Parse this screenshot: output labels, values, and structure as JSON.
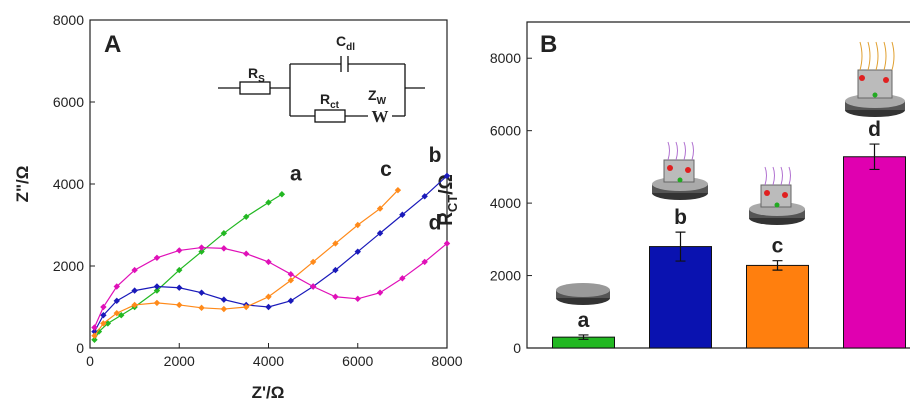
{
  "chart_data": [
    {
      "type": "scatter",
      "panel": "A",
      "x_label": "Z'/Ω",
      "y_label": "Z\"/Ω",
      "xlim": [
        0,
        8000
      ],
      "ylim": [
        0,
        8000
      ],
      "xticks": [
        0,
        2000,
        4000,
        6000,
        8000
      ],
      "yticks": [
        0,
        2000,
        4000,
        6000,
        8000
      ],
      "circuit": {
        "rs": {
          "main": "R",
          "sub": "S"
        },
        "cdl": {
          "main": "C",
          "sub": "dl"
        },
        "rct": {
          "main": "R",
          "sub": "ct"
        },
        "zw": {
          "main": "Z",
          "sub": "W"
        },
        "warburg": "W"
      },
      "series": [
        {
          "name": "a",
          "color": "#22b822",
          "x": [
            100,
            200,
            400,
            700,
            1000,
            1500,
            2000,
            2500,
            3000,
            3500,
            4000,
            4300
          ],
          "values": [
            200,
            400,
            600,
            800,
            1000,
            1400,
            1900,
            2350,
            2800,
            3200,
            3550,
            3750
          ]
        },
        {
          "name": "b",
          "color": "#1a1aba",
          "x": [
            100,
            300,
            600,
            1000,
            1500,
            2000,
            2500,
            3000,
            3500,
            4000,
            4500,
            5000,
            5500,
            6000,
            6500,
            7000,
            7500,
            8000
          ],
          "values": [
            400,
            800,
            1150,
            1400,
            1500,
            1470,
            1350,
            1180,
            1050,
            1000,
            1150,
            1500,
            1900,
            2350,
            2800,
            3250,
            3700,
            4200
          ]
        },
        {
          "name": "c",
          "color": "#ff8a1a",
          "x": [
            100,
            300,
            600,
            1000,
            1500,
            2000,
            2500,
            3000,
            3500,
            4000,
            4500,
            5000,
            5500,
            6000,
            6500,
            6900
          ],
          "values": [
            300,
            600,
            850,
            1050,
            1100,
            1050,
            980,
            950,
            1000,
            1250,
            1650,
            2100,
            2550,
            3000,
            3400,
            3850
          ]
        },
        {
          "name": "d",
          "color": "#e010b8",
          "x": [
            100,
            300,
            600,
            1000,
            1500,
            2000,
            2500,
            3000,
            3500,
            4000,
            4500,
            5000,
            5500,
            6000,
            6500,
            7000,
            7500,
            8000
          ],
          "values": [
            500,
            1000,
            1500,
            1900,
            2200,
            2380,
            2450,
            2430,
            2300,
            2100,
            1800,
            1500,
            1250,
            1200,
            1350,
            1700,
            2100,
            2550
          ]
        }
      ]
    },
    {
      "type": "bar",
      "panel": "B",
      "y_label": {
        "main": "R",
        "sub": "CT",
        "unit": "/Ω"
      },
      "ylim": [
        0,
        9000
      ],
      "yticks": [
        0,
        2000,
        4000,
        6000,
        8000
      ],
      "categories": [
        "a",
        "b",
        "c",
        "d"
      ],
      "values": [
        300,
        2800,
        2280,
        5280
      ],
      "errors": [
        60,
        400,
        130,
        350
      ],
      "colors": [
        "#22b822",
        "#0a12b0",
        "#ff7f0e",
        "#e000b0"
      ]
    }
  ]
}
